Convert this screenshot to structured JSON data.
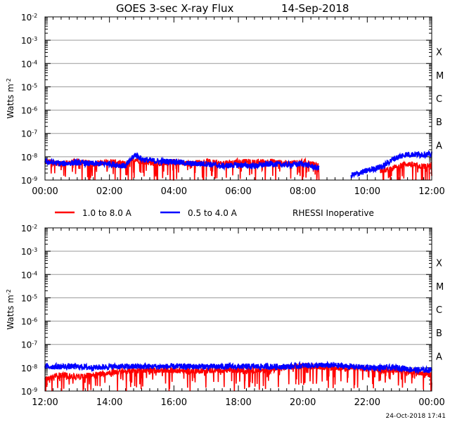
{
  "chart_data": [
    {
      "type": "line",
      "title": "GOES 3-sec X-ray Flux",
      "date": "14-Sep-2018",
      "ylabel": "Watts m",
      "ylabel_exp": "-2",
      "yscale": "log",
      "ylim_exp": [
        -9,
        -2
      ],
      "y_ticks": [
        {
          "base": "10",
          "exp": "-2"
        },
        {
          "base": "10",
          "exp": "-3"
        },
        {
          "base": "10",
          "exp": "-4"
        },
        {
          "base": "10",
          "exp": "-5"
        },
        {
          "base": "10",
          "exp": "-6"
        },
        {
          "base": "10",
          "exp": "-7"
        },
        {
          "base": "10",
          "exp": "-8"
        },
        {
          "base": "10",
          "exp": "-9"
        }
      ],
      "x_ticks": [
        "00:00",
        "02:00",
        "04:00",
        "06:00",
        "08:00",
        "10:00",
        "12:00"
      ],
      "xlim_hours": [
        0,
        12
      ],
      "flare_classes": [
        {
          "label": "X",
          "exp": -4
        },
        {
          "label": "M",
          "exp": -5
        },
        {
          "label": "C",
          "exp": -6
        },
        {
          "label": "B",
          "exp": -7
        },
        {
          "label": "A",
          "exp": -8
        }
      ],
      "series": [
        {
          "name": "1.0 to 8.0 A",
          "color": "#ff0000",
          "segments": [
            {
              "t": [
                0,
                0.5,
                1.0,
                1.5,
                2.0,
                2.5,
                2.8,
                3.0,
                3.5,
                4.0,
                4.5,
                5.0,
                5.5,
                6.0,
                6.5,
                7.0,
                7.5,
                8.0,
                8.5
              ],
              "logv": [
                -8.2,
                -8.3,
                -8.2,
                -8.3,
                -8.2,
                -8.3,
                -8.1,
                -8.2,
                -8.3,
                -8.2,
                -8.3,
                -8.2,
                -8.3,
                -8.2,
                -8.25,
                -8.2,
                -8.3,
                -8.2,
                -8.4
              ]
            },
            {
              "t": [
                10.4,
                10.8,
                11.2,
                11.6,
                12.0
              ],
              "logv": [
                -8.6,
                -8.5,
                -8.3,
                -8.4,
                -8.4
              ]
            }
          ]
        },
        {
          "name": "0.5 to 4.0 A",
          "color": "#0000ff",
          "segments": [
            {
              "t": [
                0,
                0.5,
                1.0,
                1.5,
                2.0,
                2.5,
                2.8,
                3.0,
                3.5,
                4.0,
                4.5,
                5.0,
                5.5,
                6.0,
                6.5,
                7.0,
                7.5,
                8.0,
                8.5
              ],
              "logv": [
                -8.2,
                -8.3,
                -8.25,
                -8.3,
                -8.3,
                -8.4,
                -7.9,
                -8.1,
                -8.2,
                -8.2,
                -8.3,
                -8.3,
                -8.4,
                -8.35,
                -8.4,
                -8.3,
                -8.35,
                -8.3,
                -8.5
              ]
            },
            {
              "t": [
                9.5,
                10.0,
                10.5,
                10.8,
                11.2,
                11.6,
                12.0
              ],
              "logv": [
                -8.8,
                -8.6,
                -8.4,
                -8.1,
                -7.9,
                -7.9,
                -7.9
              ]
            }
          ]
        }
      ]
    },
    {
      "type": "line",
      "ylabel": "Watts m",
      "ylabel_exp": "-2",
      "yscale": "log",
      "ylim_exp": [
        -9,
        -2
      ],
      "y_ticks": [
        {
          "base": "10",
          "exp": "-2"
        },
        {
          "base": "10",
          "exp": "-3"
        },
        {
          "base": "10",
          "exp": "-4"
        },
        {
          "base": "10",
          "exp": "-5"
        },
        {
          "base": "10",
          "exp": "-6"
        },
        {
          "base": "10",
          "exp": "-7"
        },
        {
          "base": "10",
          "exp": "-8"
        },
        {
          "base": "10",
          "exp": "-9"
        }
      ],
      "x_ticks": [
        "12:00",
        "14:00",
        "16:00",
        "18:00",
        "20:00",
        "22:00",
        "00:00"
      ],
      "xlim_hours": [
        12,
        24
      ],
      "flare_classes": [
        {
          "label": "X",
          "exp": -4
        },
        {
          "label": "M",
          "exp": -5
        },
        {
          "label": "C",
          "exp": -6
        },
        {
          "label": "B",
          "exp": -7
        },
        {
          "label": "A",
          "exp": -8
        }
      ],
      "series": [
        {
          "name": "1.0 to 8.0 A",
          "color": "#ff0000",
          "segments": [
            {
              "t": [
                12,
                12.5,
                13,
                13.5,
                14,
                14.5,
                15,
                15.5,
                16,
                16.5,
                17,
                17.5,
                18,
                18.5,
                19,
                19.5,
                20,
                20.5,
                21,
                21.5,
                22,
                22.5,
                23,
                23.5,
                24
              ],
              "logv": [
                -8.5,
                -8.3,
                -8.4,
                -8.3,
                -8.2,
                -8.15,
                -8.1,
                -8.1,
                -8.1,
                -8.15,
                -8.1,
                -8.1,
                -8.1,
                -8.1,
                -8.1,
                -8.0,
                -7.9,
                -7.95,
                -8.0,
                -8.0,
                -8.05,
                -8.1,
                -8.1,
                -8.2,
                -8.3
              ]
            }
          ]
        },
        {
          "name": "0.5 to 4.0 A",
          "color": "#0000ff",
          "segments": [
            {
              "t": [
                12,
                12.5,
                13,
                13.5,
                14,
                14.5,
                15,
                15.5,
                16,
                16.5,
                17,
                17.5,
                18,
                18.5,
                19,
                19.5,
                20,
                20.5,
                21,
                21.5,
                22,
                22.5,
                23,
                23.5,
                24
              ],
              "logv": [
                -7.95,
                -7.95,
                -7.95,
                -8.0,
                -7.95,
                -7.95,
                -7.95,
                -7.95,
                -7.95,
                -7.95,
                -7.95,
                -7.95,
                -7.95,
                -7.95,
                -7.95,
                -7.95,
                -7.9,
                -7.9,
                -7.9,
                -7.95,
                -8.0,
                -8.0,
                -8.0,
                -8.1,
                -8.1
              ]
            }
          ]
        }
      ]
    }
  ],
  "legend": {
    "items": [
      {
        "label": "1.0 to 8.0 A",
        "color": "#ff0000"
      },
      {
        "label": "0.5 to 4.0 A",
        "color": "#0000ff"
      }
    ],
    "note": "RHESSI Inoperative"
  },
  "footer": {
    "timestamp": "24-Oct-2018 17:41"
  }
}
